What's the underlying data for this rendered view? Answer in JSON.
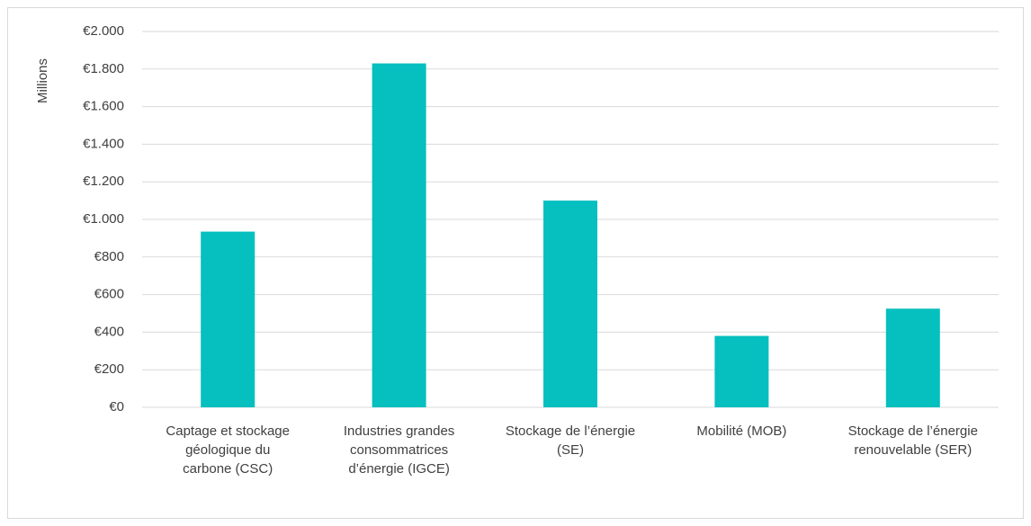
{
  "chart_data": {
    "type": "bar",
    "y_axis_label": "Millions",
    "categories": [
      "Captage et stockage géologique du carbone (CSC)",
      "Industries grandes consommatrices d’énergie (IGCE)",
      "Stockage de l’énergie (SE)",
      "Mobilité (MOB)",
      "Stockage de l’énergie renouvelable (SER)"
    ],
    "values": [
      935,
      1830,
      1100,
      380,
      525
    ],
    "color": "#06bfbf",
    "ylim": [
      0,
      2000
    ],
    "yticks": [
      {
        "value": 0,
        "label": "€0"
      },
      {
        "value": 200,
        "label": "€200"
      },
      {
        "value": 400,
        "label": "€400"
      },
      {
        "value": 600,
        "label": "€600"
      },
      {
        "value": 800,
        "label": "€800"
      },
      {
        "value": 1000,
        "label": "€1.000"
      },
      {
        "value": 1200,
        "label": "€1.200"
      },
      {
        "value": 1400,
        "label": "€1.400"
      },
      {
        "value": 1600,
        "label": "€1.600"
      },
      {
        "value": 1800,
        "label": "€1.800"
      },
      {
        "value": 2000,
        "label": "€2.000"
      }
    ],
    "grid": true
  }
}
